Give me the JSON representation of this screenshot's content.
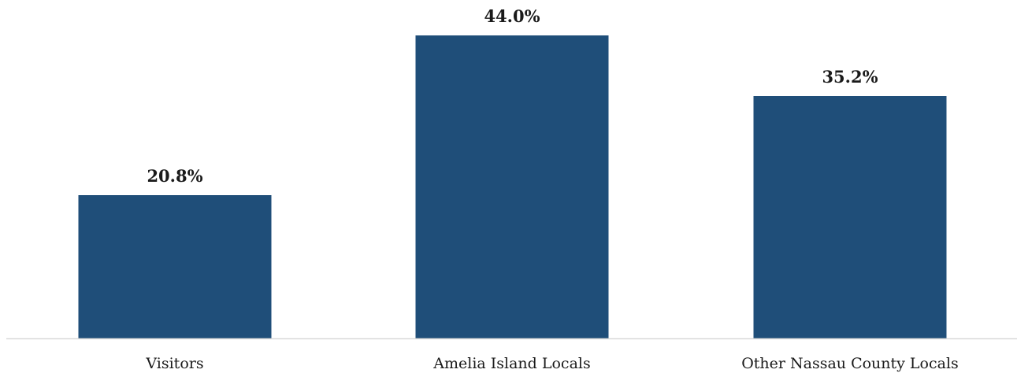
{
  "chart_data": {
    "type": "bar",
    "title": "",
    "xlabel": "",
    "ylabel": "",
    "categories": [
      "Visitors",
      "Amelia Island Locals",
      "Other Nassau County Locals"
    ],
    "values": [
      20.8,
      44.0,
      35.2
    ],
    "value_labels": [
      "20.8%",
      "44.0%",
      "35.2%"
    ],
    "unit": "%",
    "ylim": [
      0,
      48
    ],
    "grid": false,
    "legend": "none",
    "bar_color": "#1f4e79",
    "axis_color": "#d9d9d9"
  }
}
